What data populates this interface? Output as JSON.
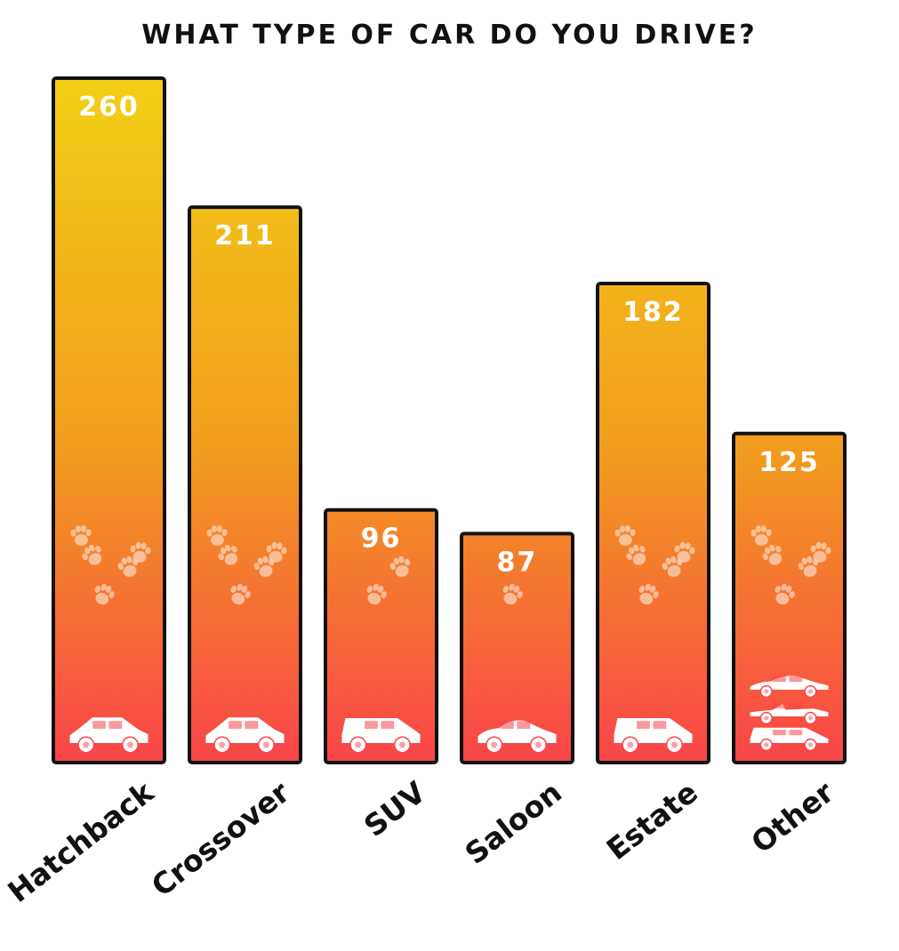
{
  "chart_data": {
    "type": "bar",
    "title": "WHAT TYPE OF CAR DO YOU DRIVE?",
    "categories": [
      "Hatchback",
      "Crossover",
      "SUV",
      "Saloon",
      "Estate",
      "Other"
    ],
    "values": [
      260,
      211,
      96,
      87,
      182,
      125
    ],
    "xlabel": "",
    "ylabel": "",
    "ylim": [
      0,
      280
    ],
    "grid": false,
    "legend": "none",
    "colors": {
      "top": "#f2cf16",
      "mid": "#f29b1e",
      "bottom": "#f9444a",
      "outline": "#111111",
      "label": "#ffffff",
      "decor": "#fbd0b4"
    },
    "icons": [
      [
        "hatchback-car-icon"
      ],
      [
        "crossover-car-icon"
      ],
      [
        "suv-car-icon"
      ],
      [
        "saloon-car-icon"
      ],
      [
        "estate-car-icon"
      ],
      [
        "coupe-car-icon",
        "convertible-car-icon",
        "mpv-car-icon"
      ]
    ],
    "decoration_icon": "paw-print-icon"
  }
}
